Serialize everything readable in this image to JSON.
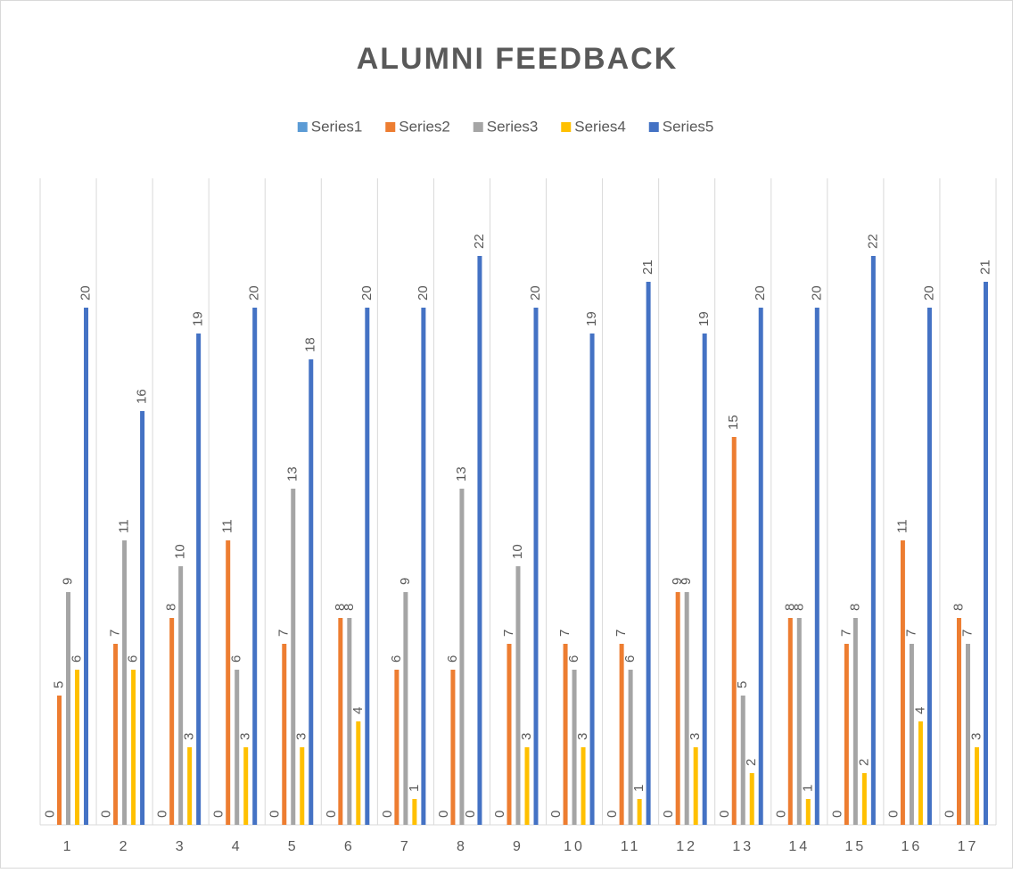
{
  "chart_data": {
    "type": "bar",
    "title": "ALUMNI FEEDBACK",
    "categories": [
      "1",
      "2",
      "3",
      "4",
      "5",
      "6",
      "7",
      "8",
      "9",
      "10",
      "11",
      "12",
      "13",
      "14",
      "15",
      "16",
      "17"
    ],
    "series": [
      {
        "name": "Series1",
        "color": "#5b9bd5",
        "values": [
          0,
          0,
          0,
          0,
          0,
          0,
          0,
          0,
          0,
          0,
          0,
          0,
          0,
          0,
          0,
          0,
          0
        ]
      },
      {
        "name": "Series2",
        "color": "#ed7d31",
        "values": [
          5,
          7,
          8,
          11,
          7,
          8,
          6,
          6,
          7,
          7,
          7,
          9,
          15,
          8,
          7,
          11,
          8
        ]
      },
      {
        "name": "Series3",
        "color": "#a5a5a5",
        "values": [
          9,
          11,
          10,
          6,
          13,
          8,
          9,
          13,
          10,
          6,
          6,
          9,
          5,
          8,
          8,
          7,
          7
        ]
      },
      {
        "name": "Series4",
        "color": "#ffc000",
        "values": [
          6,
          6,
          3,
          3,
          3,
          4,
          1,
          0,
          3,
          3,
          1,
          3,
          2,
          1,
          2,
          4,
          3
        ]
      },
      {
        "name": "Series5",
        "color": "#4472c4",
        "values": [
          20,
          16,
          19,
          20,
          18,
          20,
          20,
          22,
          20,
          19,
          21,
          19,
          20,
          20,
          22,
          20,
          21
        ]
      }
    ],
    "ylim": [
      0,
      25
    ],
    "legend": "top"
  }
}
